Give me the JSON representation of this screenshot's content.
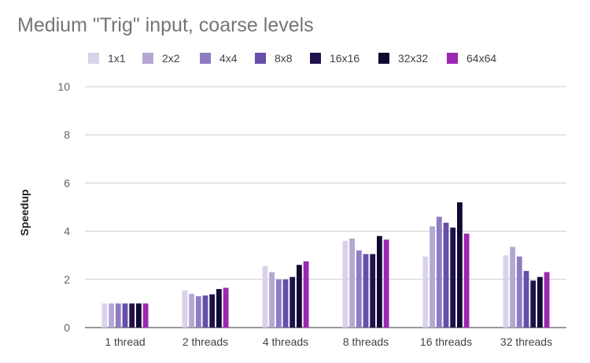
{
  "chart_data": {
    "type": "bar",
    "title": "Medium \"Trig\" input, coarse levels",
    "xlabel": "",
    "ylabel": "Speedup",
    "ylim": [
      0,
      10
    ],
    "yticks": [
      0,
      2,
      4,
      6,
      8,
      10
    ],
    "grid": true,
    "legend_position": "top",
    "categories": [
      "1 thread",
      "2 threads",
      "4 threads",
      "8 threads",
      "16 threads",
      "32 threads"
    ],
    "series": [
      {
        "name": "1x1",
        "color": "#d9d2e9",
        "values": [
          1.0,
          1.55,
          2.55,
          3.6,
          2.95,
          3.0
        ]
      },
      {
        "name": "2x2",
        "color": "#b4a7d6",
        "values": [
          1.0,
          1.4,
          2.3,
          3.7,
          4.2,
          3.35
        ]
      },
      {
        "name": "4x4",
        "color": "#8e7cc3",
        "values": [
          1.0,
          1.3,
          2.0,
          3.2,
          4.6,
          2.95
        ]
      },
      {
        "name": "8x8",
        "color": "#674ea7",
        "values": [
          1.0,
          1.33,
          2.0,
          3.05,
          4.35,
          2.35
        ]
      },
      {
        "name": "16x16",
        "color": "#20124d",
        "values": [
          1.0,
          1.38,
          2.1,
          3.05,
          4.15,
          1.95
        ]
      },
      {
        "name": "32x32",
        "color": "#0f0a33",
        "values": [
          1.0,
          1.6,
          2.6,
          3.8,
          5.2,
          2.1
        ]
      },
      {
        "name": "64x64",
        "color": "#9c27b0",
        "values": [
          1.0,
          1.65,
          2.75,
          3.65,
          3.9,
          2.3
        ]
      }
    ]
  }
}
